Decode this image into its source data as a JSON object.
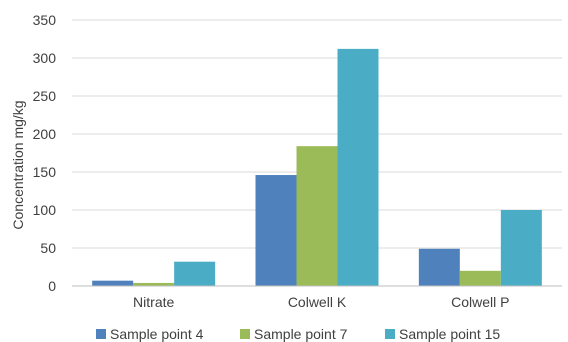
{
  "chart_data": {
    "type": "bar",
    "title": "",
    "xlabel": "",
    "ylabel": "Concentration mg/kg",
    "ylim": [
      0,
      350
    ],
    "yticks": [
      0,
      50,
      100,
      150,
      200,
      250,
      300,
      350
    ],
    "grid": true,
    "legend_position": "bottom",
    "categories": [
      "Nitrate",
      "Colwell K",
      "Colwell P"
    ],
    "series": [
      {
        "name": "Sample point 4",
        "color": "#4f81bd",
        "values": [
          7,
          146,
          49
        ]
      },
      {
        "name": "Sample point 7",
        "color": "#9bbb59",
        "values": [
          4,
          184,
          20
        ]
      },
      {
        "name": "Sample point 15",
        "color": "#4bacc6",
        "values": [
          32,
          312,
          100
        ]
      }
    ]
  }
}
